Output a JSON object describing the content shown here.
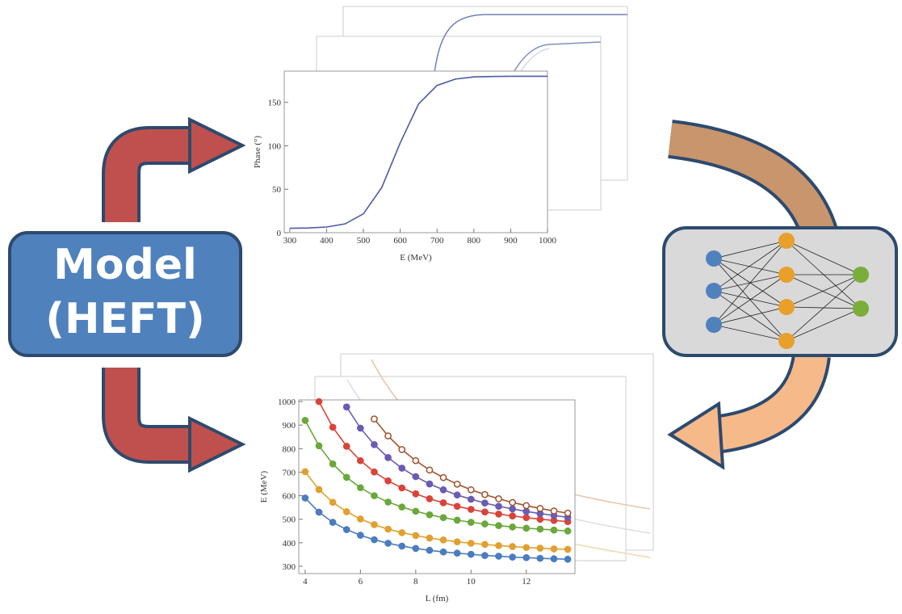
{
  "model": {
    "lines": [
      "Model",
      "(HEFT)"
    ]
  },
  "chart_data": [
    {
      "type": "line",
      "xlabel": "E (MeV)",
      "ylabel": "Phase (°)",
      "x": [
        300,
        350,
        400,
        450,
        500,
        550,
        600,
        650,
        700,
        750,
        800,
        850,
        900,
        950,
        1000
      ],
      "series": [
        {
          "color": "#4a5aa8",
          "values": [
            5.1,
            5.4,
            6.5,
            10.1,
            21.7,
            52.1,
            103.4,
            148.2,
            169.5,
            176.8,
            179.3,
            179.8,
            180,
            180,
            180
          ]
        }
      ],
      "xlim": [
        285,
        1000
      ],
      "ylim": [
        0,
        186
      ],
      "xticks": [
        300,
        400,
        500,
        600,
        700,
        800,
        900,
        1000
      ],
      "yticks": [
        0,
        50,
        100,
        150
      ]
    },
    {
      "type": "line",
      "xlabel": "L (fm)",
      "ylabel": "E (MeV)",
      "x": [
        4,
        4.5,
        5,
        5.5,
        6,
        6.5,
        7,
        7.5,
        8,
        8.5,
        9,
        9.5,
        10,
        10.5,
        11,
        11.5,
        12,
        12.5,
        13,
        13.5
      ],
      "series": [
        {
          "color": "#4a7cc0",
          "marker": "filled",
          "values": [
            590,
            530,
            487,
            456,
            432,
            413,
            398,
            386,
            376,
            368,
            361,
            356,
            351,
            346,
            343,
            339,
            337,
            334,
            332,
            330
          ]
        },
        {
          "color": "#e0a030",
          "marker": "filled",
          "values": [
            702,
            626,
            572,
            532,
            501,
            477,
            458,
            443,
            431,
            420,
            412,
            404,
            398,
            393,
            388,
            384,
            380,
            377,
            374,
            372
          ]
        },
        {
          "color": "#6aa83a",
          "marker": "filled",
          "values": [
            920,
            812,
            735,
            678,
            634,
            600,
            573,
            552,
            534,
            519,
            507,
            496,
            487,
            480,
            473,
            467,
            462,
            458,
            454,
            450
          ]
        },
        {
          "color": "#d9443a",
          "marker": "filled",
          "values": [
            null,
            1000,
            891,
            810,
            749,
            701,
            663,
            633,
            608,
            587,
            570,
            555,
            542,
            531,
            522,
            514,
            507,
            500,
            495,
            490
          ]
        },
        {
          "color": "#6b5bb5",
          "marker": "filled",
          "values": [
            null,
            null,
            null,
            977,
            887,
            817,
            762,
            717,
            681,
            650,
            625,
            603,
            585,
            569,
            555,
            544,
            533,
            524,
            516,
            508
          ]
        },
        {
          "color": "#a0522d",
          "marker": "open",
          "values": [
            null,
            null,
            null,
            null,
            null,
            926,
            854,
            796,
            749,
            709,
            677,
            649,
            625,
            605,
            587,
            571,
            558,
            546,
            535,
            526
          ]
        }
      ],
      "xlim": [
        3.77,
        13.76
      ],
      "ylim": [
        269,
        1007
      ],
      "xticks": [
        4,
        6,
        8,
        10,
        12
      ],
      "yticks": [
        300,
        400,
        500,
        600,
        700,
        800,
        900,
        1000
      ]
    }
  ]
}
